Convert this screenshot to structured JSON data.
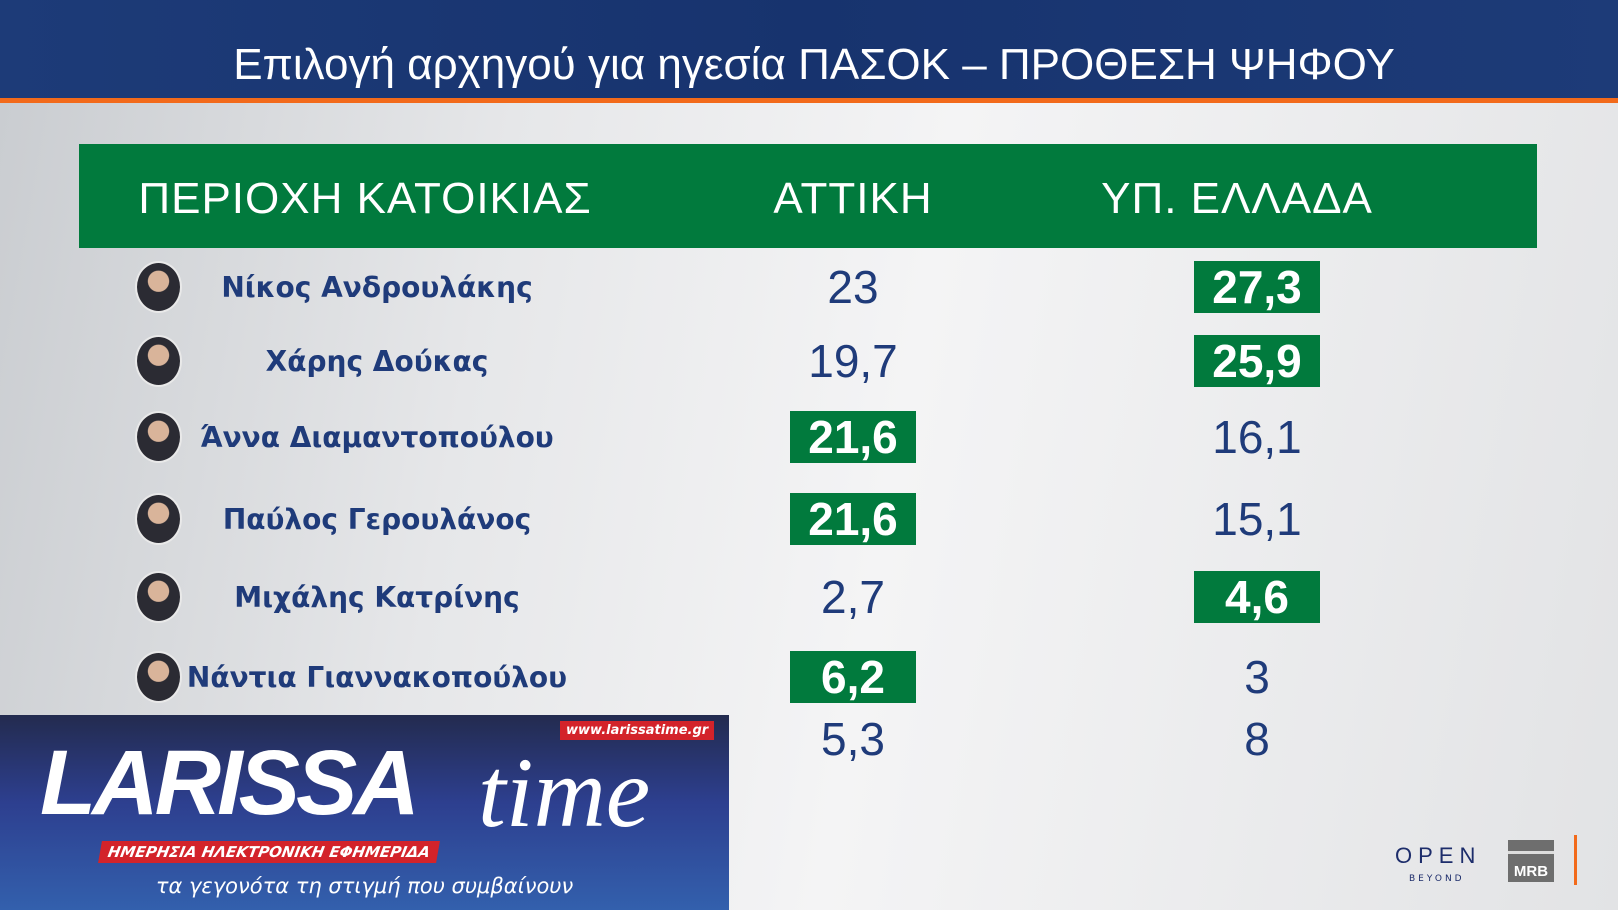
{
  "title": "Επιλογή αρχηγού για ηγεσία ΠΑΣΟΚ – ΠΡΟΘΕΣΗ ΨΗΦΟΥ",
  "columns": [
    "ΠΕΡΙΟΧΗ ΚΑΤΟΙΚΙΑΣ",
    "ΑΤΤΙΚΗ",
    "ΥΠ. ΕΛΛΑΔΑ"
  ],
  "highlight_color": "#017a3d",
  "rows": [
    {
      "name": "Νίκος Ανδρουλάκης",
      "attiki": "23",
      "ellada": "27,3",
      "hl_attiki": false,
      "hl_ellada": true
    },
    {
      "name": "Χάρης Δούκας",
      "attiki": "19,7",
      "ellada": "25,9",
      "hl_attiki": false,
      "hl_ellada": true
    },
    {
      "name": "Άννα Διαμαντοπούλου",
      "attiki": "21,6",
      "ellada": "16,1",
      "hl_attiki": true,
      "hl_ellada": false
    },
    {
      "name": "Παύλος Γερουλάνος",
      "attiki": "21,6",
      "ellada": "15,1",
      "hl_attiki": true,
      "hl_ellada": false
    },
    {
      "name": "Μιχάλης Κατρίνης",
      "attiki": "2,7",
      "ellada": "4,6",
      "hl_attiki": false,
      "hl_ellada": true
    },
    {
      "name": "Νάντια Γιαννακοπούλου",
      "attiki": "6,2",
      "ellada": "3",
      "hl_attiki": true,
      "hl_ellada": false
    },
    {
      "name": "",
      "attiki": "5,3",
      "ellada": "8",
      "hl_attiki": false,
      "hl_ellada": false
    }
  ],
  "watermark": {
    "brand": "LARISSA time",
    "url": "www.larissatime.gr",
    "tagline": "ΗΜΕΡΗΣΙΑ ΗΛΕΚΤΡΟΝΙΚΗ ΕΦΗΜΕΡΙΔΑ",
    "slogan": "τα γεγονότα τη στιγμή που συμβαίνουν"
  },
  "logos": {
    "open": "OPEN",
    "open_sub": "BEYOND",
    "mrb": "MRB"
  }
}
